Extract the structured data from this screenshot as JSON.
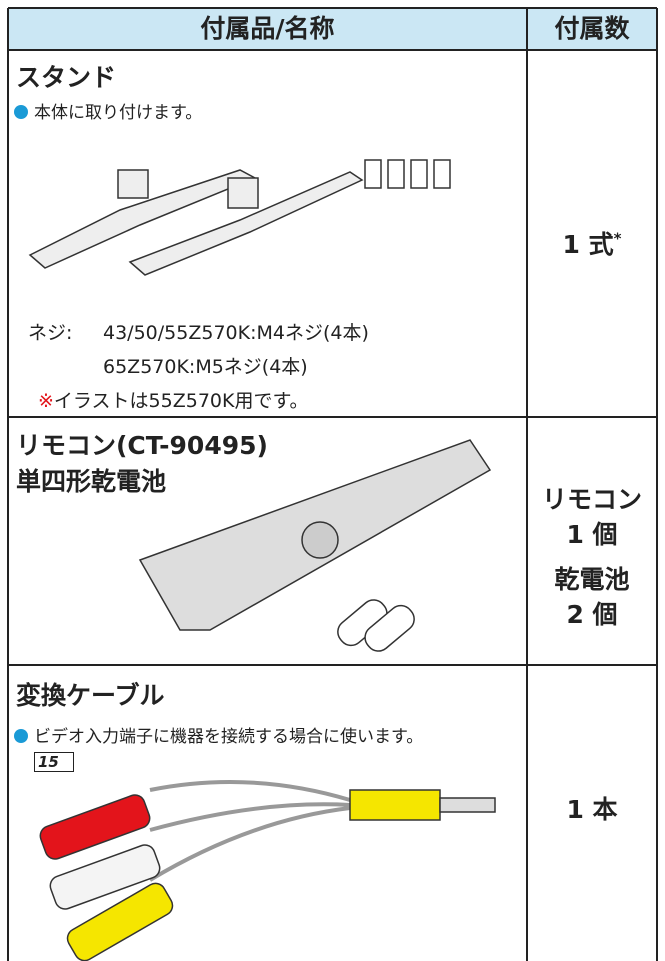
{
  "table": {
    "header": [
      "付属品/名称",
      "付属数"
    ],
    "rows": [
      {
        "name": [
          "スタンド"
        ],
        "note": "本体に取り付けます。",
        "details": [
          "ネジ:",
          "43/50/55Z570K:M4ネジ(4本)",
          "65Z570K:M5ネジ(4本)"
        ],
        "footnote_mark": "※",
        "footnote": "イラストは55Z570K用です。",
        "count": [
          "1 式"
        ],
        "count_mark": "*"
      },
      {
        "name": [
          "リモコン(CT-90495)",
          "単四形乾電池"
        ],
        "count": [
          "リモコン",
          "1 個",
          "乾電池",
          "2 個"
        ]
      },
      {
        "name": [
          "変換ケーブル"
        ],
        "note": "ビデオ入力端子に機器を接続する場合に使います。",
        "ref": "15",
        "count": [
          "1 本"
        ]
      }
    ]
  }
}
